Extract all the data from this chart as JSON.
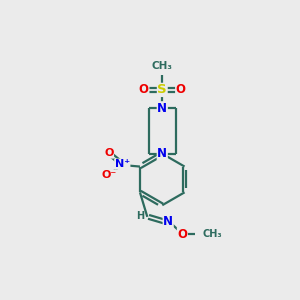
{
  "bg_color": "#ebebeb",
  "bond_color": "#2d6b5e",
  "N_color": "#0000ee",
  "O_color": "#ee0000",
  "S_color": "#cccc00",
  "C_color": "#2d6b5e",
  "lw": 1.6,
  "fs": 8.5,
  "xlim": [
    0,
    10
  ],
  "ylim": [
    0,
    12
  ]
}
